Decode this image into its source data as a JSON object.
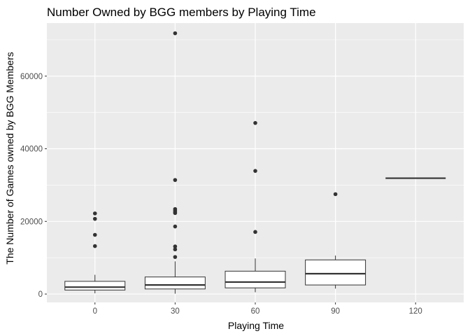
{
  "chart_data": {
    "type": "boxplot",
    "title": "Number Owned by BGG members by Playing Time",
    "xlabel": "Playing Time",
    "ylabel": "The Number of Games owned by BGG Members",
    "x_tick_labels": [
      "0",
      "30",
      "60",
      "90",
      "120"
    ],
    "y_tick_labels": [
      "0",
      "20000",
      "40000",
      "60000"
    ],
    "y_ticks": [
      0,
      20000,
      40000,
      60000
    ],
    "y_minor_ticks": [
      10000,
      30000,
      50000,
      70000
    ],
    "ylim": [
      -2300,
      74600
    ],
    "xlim": [
      -0.6,
      4.6
    ],
    "grid": true,
    "colors": {
      "panel": "#ebebeb",
      "grid": "#ffffff",
      "box_fill": "#ffffff",
      "box_stroke": "#333333",
      "outlier": "#333333"
    },
    "boxes": [
      {
        "x": 0,
        "q1": 1100,
        "median": 1900,
        "q3": 3500,
        "whisker_low": 200,
        "whisker_high": 5300,
        "outliers": [
          13200,
          16300,
          20700,
          22200
        ]
      },
      {
        "x": 30,
        "q1": 1400,
        "median": 2500,
        "q3": 4700,
        "whisker_low": 100,
        "whisker_high": 9000,
        "outliers": [
          10200,
          12300,
          13100,
          18600,
          22300,
          22600,
          23000,
          23400,
          31400,
          71800
        ]
      },
      {
        "x": 60,
        "q1": 1700,
        "median": 3300,
        "q3": 6300,
        "whisker_low": 500,
        "whisker_high": 9800,
        "outliers": [
          17100,
          33900,
          47100
        ]
      },
      {
        "x": 90,
        "q1": 2500,
        "median": 5600,
        "q3": 9400,
        "whisker_low": 1500,
        "whisker_high": 10600,
        "outliers": [
          27500
        ]
      },
      {
        "x": 120,
        "q1": 31900,
        "median": 31900,
        "q3": 31900,
        "whisker_low": 31900,
        "whisker_high": 31900,
        "outliers": []
      }
    ]
  }
}
